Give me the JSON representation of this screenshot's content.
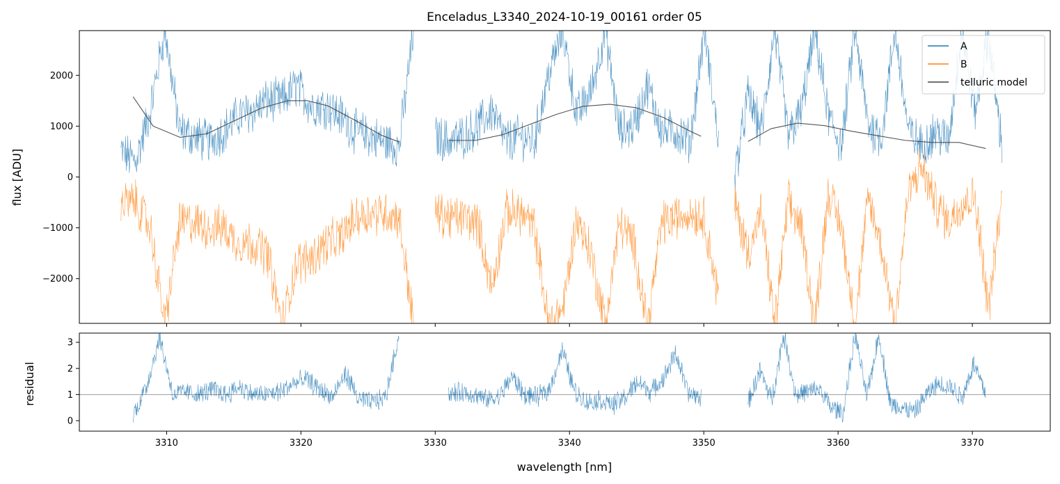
{
  "chart_data": [
    {
      "panel": "top",
      "type": "line",
      "title": "Enceladus_L3340_2024-10-19_00161  order 05",
      "xlabel": "",
      "ylabel": "flux [ADU]",
      "xlim": [
        3303.5,
        3375.8
      ],
      "ylim": [
        -2880,
        2880
      ],
      "yticks": [
        -2000,
        -1000,
        0,
        1000,
        2000
      ],
      "ytick_labels": [
        "−2000",
        "−1000",
        "0",
        "1000",
        "2000"
      ],
      "legend": {
        "position": "top-right"
      },
      "series": [
        {
          "name": "A",
          "color": "#1f77b4",
          "segments": [
            {
              "x_start": 3306.6,
              "x_end": 3328.4,
              "y": [
                500,
                300,
                1300,
                2900,
                900,
                800,
                700,
                900,
                1200,
                1300,
                1500,
                1500,
                1800,
                1400,
                1400,
                1200,
                900,
                800,
                700,
                600,
                2900
              ]
            },
            {
              "x_start": 3330.0,
              "x_end": 3351.1,
              "y": [
                800,
                700,
                800,
                1000,
                1300,
                700,
                800,
                700,
                2000,
                2900,
                1200,
                1700,
                2900,
                900,
                1000,
                1800,
                900,
                900,
                700,
                2900,
                700
              ]
            },
            {
              "x_start": 3352.3,
              "x_end": 3372.2,
              "y": [
                0,
                1600,
                900,
                2900,
                800,
                1300,
                2900,
                1200,
                600,
                2900,
                1000,
                800,
                2900,
                900,
                600,
                900,
                700,
                2900,
                1300,
                2800,
                600
              ]
            }
          ]
        },
        {
          "name": "B",
          "color": "#ff7f0e",
          "segments": [
            {
              "x_start": 3306.6,
              "x_end": 3328.4,
              "y": [
                -500,
                -500,
                -1000,
                -2900,
                -900,
                -900,
                -1000,
                -1000,
                -1300,
                -1300,
                -1500,
                -2900,
                -1700,
                -1600,
                -1300,
                -1200,
                -800,
                -700,
                -700,
                -800,
                -2900
              ]
            },
            {
              "x_start": 3330.0,
              "x_end": 3351.1,
              "y": [
                -700,
                -800,
                -800,
                -900,
                -2200,
                -700,
                -700,
                -1000,
                -2900,
                -2600,
                -800,
                -1500,
                -2900,
                -900,
                -1300,
                -2900,
                -900,
                -800,
                -700,
                -800,
                -2400
              ]
            },
            {
              "x_start": 3352.3,
              "x_end": 3372.2,
              "y": [
                -500,
                -1500,
                -700,
                -2900,
                -500,
                -1000,
                -2900,
                -300,
                -1000,
                -2900,
                -400,
                -1400,
                -2900,
                -300,
                200,
                -500,
                -900,
                -500,
                -400,
                -2600,
                -400
              ]
            }
          ]
        },
        {
          "name": "telluric model",
          "color": "#404040",
          "segments": [
            {
              "x": [
                3307.5,
                3309.0,
                3311.0,
                3313.0,
                3315.0,
                3317.0,
                3319.0,
                3320.5,
                3322.0,
                3324.0,
                3326.0,
                3327.3
              ],
              "y": [
                1580,
                1000,
                780,
                850,
                1100,
                1350,
                1500,
                1500,
                1400,
                1120,
                820,
                690
              ]
            },
            {
              "x": [
                3331.0,
                3333.0,
                3335.0,
                3337.0,
                3339.0,
                3341.0,
                3343.0,
                3345.0,
                3347.0,
                3349.0,
                3349.8
              ],
              "y": [
                720,
                720,
                830,
                1030,
                1230,
                1390,
                1430,
                1360,
                1170,
                900,
                800
              ]
            },
            {
              "x": [
                3353.3,
                3355.0,
                3357.0,
                3359.0,
                3361.0,
                3363.0,
                3365.0,
                3367.0,
                3369.0,
                3371.0
              ],
              "y": [
                700,
                950,
                1060,
                1010,
                900,
                810,
                720,
                680,
                680,
                560
              ]
            }
          ]
        }
      ]
    },
    {
      "panel": "bottom",
      "type": "line",
      "title": "",
      "xlabel": "wavelength [nm]",
      "ylabel": "residual",
      "xlim": [
        3303.5,
        3375.8
      ],
      "ylim": [
        -0.4,
        3.35
      ],
      "xticks": [
        3310,
        3320,
        3330,
        3340,
        3350,
        3360,
        3370
      ],
      "xtick_labels": [
        "3310",
        "3320",
        "3330",
        "3340",
        "3350",
        "3360",
        "3370"
      ],
      "yticks": [
        0,
        1,
        2,
        3
      ],
      "ytick_labels": [
        "0",
        "1",
        "2",
        "3"
      ],
      "reference_line": 1,
      "series": [
        {
          "name": "",
          "color": "#1f77b4",
          "segments": [
            {
              "x_start": 3307.5,
              "x_end": 3327.3,
              "y": [
                0.2,
                1.3,
                3.2,
                1.0,
                1.1,
                1.0,
                1.2,
                1.0,
                1.3,
                1.0,
                1.0,
                1.1,
                1.4,
                1.6,
                1.2,
                0.9,
                1.8,
                0.8,
                0.7,
                0.9,
                3.3
              ]
            },
            {
              "x_start": 3331.0,
              "x_end": 3349.8,
              "y": [
                1.0,
                1.1,
                1.0,
                0.8,
                0.9,
                1.7,
                1.0,
                0.9,
                1.2,
                2.7,
                1.1,
                0.7,
                0.8,
                0.6,
                0.9,
                1.5,
                1.1,
                1.6,
                2.6,
                1.0,
                0.9
              ]
            },
            {
              "x_start": 3353.3,
              "x_end": 3371.0,
              "y": [
                0.7,
                1.9,
                0.8,
                3.3,
                1.0,
                1.1,
                1.2,
                0.5,
                0.3,
                3.3,
                0.9,
                3.3,
                0.6,
                0.5,
                0.3,
                1.0,
                1.4,
                1.3,
                0.9,
                2.2,
                1.0
              ]
            }
          ]
        }
      ]
    }
  ]
}
